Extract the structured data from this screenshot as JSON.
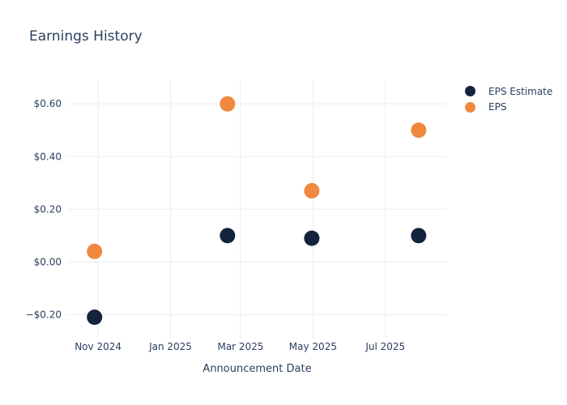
{
  "chart_data": {
    "type": "scatter",
    "title": "Earnings History",
    "x_axis": {
      "label": "Announcement Date",
      "range": [
        "2024-10-06",
        "2025-08-22"
      ],
      "ticks": [
        {
          "date": "2024-11-01",
          "label": "Nov 2024"
        },
        {
          "date": "2025-01-01",
          "label": "Jan 2025"
        },
        {
          "date": "2025-03-01",
          "label": "Mar 2025"
        },
        {
          "date": "2025-05-01",
          "label": "May 2025"
        },
        {
          "date": "2025-07-01",
          "label": "Jul 2025"
        }
      ]
    },
    "y_axis": {
      "label": "",
      "range": [
        -0.291,
        0.693
      ],
      "ticks": [
        {
          "value": 0.6,
          "label": "$0.60"
        },
        {
          "value": 0.4,
          "label": "$0.40"
        },
        {
          "value": 0.2,
          "label": "$0.20"
        },
        {
          "value": 0.0,
          "label": "$0.00"
        },
        {
          "value": -0.2,
          "label": "−$0.20"
        }
      ]
    },
    "grid": true,
    "legend_position": "top-right-outside",
    "series": [
      {
        "name": "EPS Estimate",
        "color": "#13233e",
        "marker_size": 19,
        "points": [
          {
            "date": "2024-10-29",
            "value": -0.21
          },
          {
            "date": "2025-02-18",
            "value": 0.1
          },
          {
            "date": "2025-04-30",
            "value": 0.09
          },
          {
            "date": "2025-07-29",
            "value": 0.1
          }
        ]
      },
      {
        "name": "EPS",
        "color": "#f0883e",
        "marker_size": 19,
        "points": [
          {
            "date": "2024-10-29",
            "value": 0.04
          },
          {
            "date": "2025-02-18",
            "value": 0.6
          },
          {
            "date": "2025-04-30",
            "value": 0.27
          },
          {
            "date": "2025-07-29",
            "value": 0.5
          }
        ]
      }
    ],
    "colors": {
      "text": "#2a3f5f",
      "grid": "#e9edf5",
      "background": "#ffffff"
    }
  }
}
